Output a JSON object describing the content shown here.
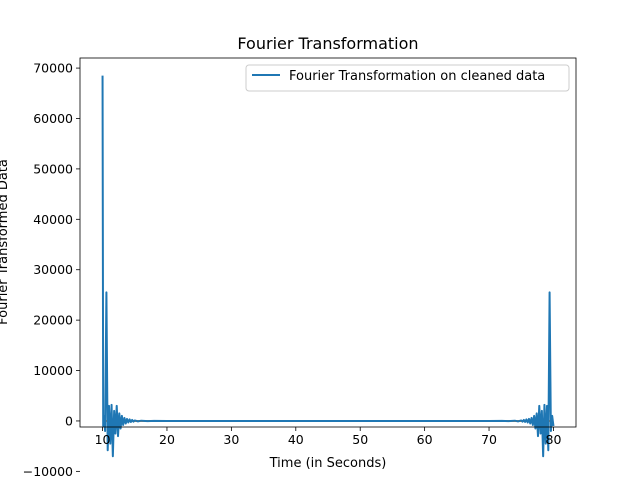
{
  "chart_data": {
    "type": "line",
    "title": "Fourier Transformation",
    "xlabel": "Time (in Seconds)",
    "ylabel": "Fourier Transformed Data",
    "xlim": [
      6.5,
      83.5
    ],
    "ylim": [
      -1200,
      72000
    ],
    "xticks": [
      10,
      20,
      30,
      40,
      50,
      60,
      70,
      80
    ],
    "yticks": [
      -10000,
      0,
      10000,
      20000,
      30000,
      40000,
      50000,
      60000,
      70000
    ],
    "grid": false,
    "legend_position": "top-right",
    "series": [
      {
        "name": "Fourier Transformation on cleaned data",
        "color": "#1f77b4",
        "x": [
          10.0,
          10.1,
          10.2,
          10.4,
          10.6,
          10.8,
          11.0,
          11.2,
          11.4,
          11.6,
          11.8,
          12.0,
          12.2,
          12.4,
          12.6,
          12.8,
          13.0,
          13.2,
          13.4,
          13.6,
          13.8,
          14.0,
          14.2,
          14.4,
          14.6,
          14.8,
          15.0,
          15.5,
          16.0,
          17.0,
          18.0,
          20.0,
          30.0,
          40.0,
          50.0,
          60.0,
          70.0,
          72.0,
          73.0,
          74.0,
          74.5,
          75.0,
          75.2,
          75.4,
          75.6,
          75.8,
          76.0,
          76.2,
          76.4,
          76.6,
          76.8,
          77.0,
          77.2,
          77.4,
          77.6,
          77.8,
          78.0,
          78.2,
          78.4,
          78.6,
          78.8,
          79.0,
          79.2,
          79.4,
          79.6,
          79.8,
          80.0
        ],
        "y": [
          68500,
          -1000,
          1000,
          -2000,
          25500,
          -5800,
          3000,
          -4500,
          3200,
          -7000,
          2000,
          -2500,
          3000,
          -3000,
          1500,
          -1500,
          1000,
          -800,
          600,
          -500,
          400,
          -300,
          300,
          -200,
          200,
          -150,
          100,
          -80,
          50,
          -30,
          20,
          0,
          0,
          0,
          0,
          0,
          0,
          20,
          -30,
          50,
          -80,
          100,
          -150,
          200,
          -200,
          300,
          -300,
          400,
          -500,
          600,
          -800,
          1000,
          -1500,
          1500,
          -3000,
          3000,
          -2500,
          2000,
          -7000,
          3200,
          -4500,
          3000,
          -5800,
          25500,
          -2000,
          1000,
          -1000
        ]
      },
      {
        "color": "#ff7f0e",
        "x": [
          10.0,
          80.0
        ],
        "y": [
          0,
          0
        ]
      }
    ]
  }
}
